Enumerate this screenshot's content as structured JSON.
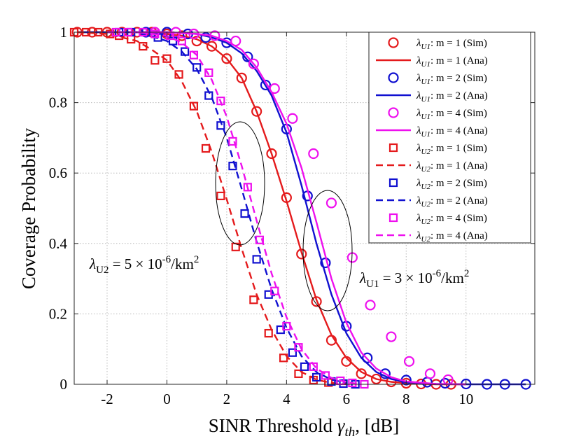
{
  "chart_data": {
    "type": "line",
    "xlabel_main": "SINR Threshold ",
    "xlabel_symbol": "γ",
    "xlabel_sub": "th",
    "xlabel_unit": ", [dB]",
    "ylabel": "Coverage Probability",
    "xlim": [
      -3.1,
      12.3
    ],
    "ylim": [
      0,
      1.0
    ],
    "xticks": [
      -2,
      0,
      2,
      4,
      6,
      8,
      10
    ],
    "yticks": [
      0,
      0.2,
      0.4,
      0.6,
      0.8,
      1
    ],
    "xtick_labels": [
      "-2",
      "0",
      "2",
      "4",
      "6",
      "8",
      "10"
    ],
    "ytick_labels": [
      "0",
      "0.2",
      "0.4",
      "0.6",
      "0.8",
      "1"
    ],
    "grid": true,
    "legend_position": "top-right",
    "colors": {
      "red": "#e41a1c",
      "blue": "#1010d0",
      "magenta": "#ee10ee"
    },
    "series": [
      {
        "name": "λU1: m = 1 (Sim)",
        "legend_main": "λ",
        "legend_sub": "U1",
        "legend_rest": ": m = 1 (Sim)",
        "style": "circle",
        "color": "#e41a1c",
        "x": [
          -3,
          -2.5,
          -2,
          -1.5,
          -1,
          -0.5,
          0,
          0.5,
          1,
          1.5,
          2,
          2.5,
          3,
          3.5,
          4,
          4.5,
          5,
          5.5,
          6,
          6.5,
          7,
          7.5,
          8,
          8.5,
          9,
          9.5
        ],
        "y": [
          1,
          1,
          1,
          1,
          1,
          1,
          0.995,
          0.99,
          0.975,
          0.96,
          0.925,
          0.87,
          0.775,
          0.655,
          0.53,
          0.37,
          0.235,
          0.125,
          0.065,
          0.03,
          0.015,
          0.007,
          0.003,
          0.001,
          0,
          0
        ]
      },
      {
        "name": "λU1: m = 1 (Ana)",
        "legend_main": "λ",
        "legend_sub": "U1",
        "legend_rest": ": m = 1 (Ana)",
        "style": "solid",
        "color": "#e41a1c",
        "x": [
          -3,
          -2,
          -1,
          0,
          0.5,
          1,
          1.5,
          2,
          2.5,
          3,
          3.5,
          4,
          4.5,
          5,
          5.5,
          6,
          6.5,
          7,
          7.5,
          8,
          9,
          10
        ],
        "y": [
          1,
          1,
          1,
          0.995,
          0.99,
          0.98,
          0.96,
          0.925,
          0.87,
          0.775,
          0.655,
          0.52,
          0.375,
          0.24,
          0.14,
          0.075,
          0.035,
          0.015,
          0.007,
          0.003,
          0,
          0
        ]
      },
      {
        "name": "λU1: m = 2 (Sim)",
        "legend_main": "λ",
        "legend_sub": "U1",
        "legend_rest": ": m = 2 (Sim)",
        "style": "circle",
        "color": "#1010d0",
        "x": [
          -0.7,
          0,
          0.7,
          1.3,
          2,
          2.7,
          3.3,
          4,
          4.7,
          5.3,
          6,
          6.7,
          7.3,
          8,
          8.7,
          9.3,
          10,
          10.7,
          11.3,
          12
        ],
        "y": [
          1,
          1,
          0.995,
          0.985,
          0.97,
          0.93,
          0.85,
          0.725,
          0.535,
          0.345,
          0.165,
          0.075,
          0.03,
          0.012,
          0.006,
          0.003,
          0.001,
          0,
          0,
          0
        ]
      },
      {
        "name": "λU1: m = 2 (Ana)",
        "legend_main": "λ",
        "legend_sub": "U1",
        "legend_rest": ": m = 2 (Ana)",
        "style": "solid",
        "color": "#1010d0",
        "x": [
          -3,
          -1,
          0,
          1,
          1.5,
          2,
          2.5,
          3,
          3.5,
          4,
          4.5,
          5,
          5.5,
          6,
          6.5,
          7,
          7.5,
          8,
          9,
          10,
          12
        ],
        "y": [
          1,
          1,
          1,
          0.995,
          0.985,
          0.97,
          0.94,
          0.89,
          0.82,
          0.715,
          0.565,
          0.4,
          0.255,
          0.145,
          0.075,
          0.035,
          0.015,
          0.006,
          0.001,
          0,
          0
        ]
      },
      {
        "name": "λU1: m = 4 (Sim)",
        "legend_main": "λ",
        "legend_sub": "U1",
        "legend_rest": ": m = 4 (Sim)",
        "style": "circle",
        "color": "#ee10ee",
        "x": [
          -0.4,
          0.3,
          0.9,
          1.6,
          2.3,
          2.9,
          3.6,
          4.2,
          4.9,
          5.5,
          6.2,
          6.8,
          7.5,
          8.1,
          8.8,
          9.4
        ],
        "y": [
          1,
          1,
          0.995,
          0.99,
          0.975,
          0.91,
          0.84,
          0.755,
          0.655,
          0.515,
          0.36,
          0.225,
          0.135,
          0.065,
          0.03,
          0.013
        ]
      },
      {
        "name": "λU1: m = 4 (Ana)",
        "legend_main": "λ",
        "legend_sub": "U1",
        "legend_rest": ": m = 4 (Ana)",
        "style": "solid",
        "color": "#ee10ee",
        "x": [
          -1,
          0,
          1,
          1.5,
          2,
          2.5,
          3,
          3.5,
          4,
          4.5,
          5,
          5.5,
          6,
          6.5,
          7,
          7.5,
          8,
          9,
          10
        ],
        "y": [
          1,
          1,
          0.995,
          0.99,
          0.975,
          0.95,
          0.9,
          0.83,
          0.74,
          0.615,
          0.46,
          0.3,
          0.175,
          0.09,
          0.045,
          0.02,
          0.008,
          0.001,
          0
        ]
      },
      {
        "name": "λU2: m = 1 (Sim)",
        "legend_main": "λ",
        "legend_sub": "U2",
        "legend_rest": ": m = 1 (Sim)",
        "style": "square",
        "color": "#e41a1c",
        "x": [
          -3.1,
          -2.7,
          -2.3,
          -1.9,
          -1.6,
          -1.2,
          -0.8,
          -0.4,
          0,
          0.4,
          0.9,
          1.3,
          1.8,
          2.3,
          2.9,
          3.4,
          3.9,
          4.4,
          4.9,
          5.4
        ],
        "y": [
          1,
          1,
          1,
          0.995,
          0.99,
          0.98,
          0.96,
          0.92,
          0.925,
          0.88,
          0.79,
          0.67,
          0.535,
          0.39,
          0.24,
          0.145,
          0.075,
          0.03,
          0.012,
          0.005
        ]
      },
      {
        "name": "λU2: m = 1 (Ana)",
        "legend_main": "λ",
        "legend_sub": "U2",
        "legend_rest": ": m = 1 (Ana)",
        "style": "dashed",
        "color": "#e41a1c",
        "x": [
          -3,
          -2,
          -1,
          -0.5,
          0,
          0.5,
          1,
          1.5,
          2,
          2.5,
          3,
          3.5,
          4,
          4.5,
          5,
          5.5,
          6
        ],
        "y": [
          1,
          0.995,
          0.975,
          0.95,
          0.92,
          0.86,
          0.775,
          0.66,
          0.525,
          0.385,
          0.255,
          0.155,
          0.08,
          0.035,
          0.013,
          0.004,
          0
        ]
      },
      {
        "name": "λU2: m = 2 (Sim)",
        "legend_main": "λ",
        "legend_sub": "U2",
        "legend_rest": ": m = 2 (Sim)",
        "style": "square",
        "color": "#1010d0",
        "x": [
          -1.6,
          -1.2,
          -0.7,
          -0.3,
          0.2,
          0.6,
          1,
          1.4,
          1.8,
          2.2,
          2.6,
          3,
          3.4,
          3.8,
          4.2,
          4.6,
          5,
          5.5,
          5.9,
          6.3
        ],
        "y": [
          1,
          1,
          1,
          0.985,
          0.975,
          0.945,
          0.9,
          0.82,
          0.735,
          0.62,
          0.485,
          0.355,
          0.255,
          0.155,
          0.09,
          0.05,
          0.02,
          0.008,
          0.002,
          0
        ]
      },
      {
        "name": "λU2: m = 2 (Ana)",
        "legend_main": "λ",
        "legend_sub": "U2",
        "legend_rest": ": m = 2 (Ana)",
        "style": "dashed",
        "color": "#1010d0",
        "x": [
          -2,
          -1,
          0,
          0.5,
          1,
          1.5,
          2,
          2.5,
          3,
          3.5,
          4,
          4.5,
          5,
          5.5,
          6
        ],
        "y": [
          1,
          1,
          0.975,
          0.945,
          0.895,
          0.815,
          0.7,
          0.555,
          0.405,
          0.27,
          0.16,
          0.08,
          0.035,
          0.013,
          0.004
        ]
      },
      {
        "name": "λU2: m = 4 (Sim)",
        "legend_main": "λ",
        "legend_sub": "U2",
        "legend_rest": ": m = 4 (Sim)",
        "style": "square",
        "color": "#ee10ee",
        "x": [
          -1.7,
          -1.3,
          -0.8,
          -0.4,
          0.1,
          0.5,
          0.9,
          1.4,
          1.8,
          2.2,
          2.7,
          3.1,
          3.6,
          4,
          4.4,
          4.9,
          5.3,
          5.8,
          6.2,
          6.6
        ],
        "y": [
          1,
          1,
          1,
          0.995,
          0.99,
          0.975,
          0.935,
          0.885,
          0.805,
          0.69,
          0.56,
          0.41,
          0.265,
          0.165,
          0.105,
          0.05,
          0.025,
          0.01,
          0.004,
          0
        ]
      },
      {
        "name": "λU2: m = 4 (Ana)",
        "legend_main": "λ",
        "legend_sub": "U2",
        "legend_rest": ": m = 4 (Ana)",
        "style": "dashed",
        "color": "#ee10ee",
        "x": [
          -2,
          -1,
          0,
          0.5,
          1,
          1.5,
          2,
          2.5,
          3,
          3.5,
          4,
          4.5,
          5,
          5.5,
          6,
          6.5
        ],
        "y": [
          1,
          1,
          0.99,
          0.97,
          0.935,
          0.865,
          0.76,
          0.62,
          0.465,
          0.315,
          0.19,
          0.1,
          0.045,
          0.018,
          0.006,
          0
        ]
      }
    ],
    "annotations": [
      {
        "main": "λ",
        "sub": "U2",
        "rest": " = 5 × 10",
        "sup": "-6",
        "unit": "/km",
        "sup2": "2"
      },
      {
        "main": "λ",
        "sub": "U1",
        "rest": " = 3 × 10",
        "sup": "-6",
        "unit": "/km",
        "sup2": "2"
      }
    ]
  }
}
